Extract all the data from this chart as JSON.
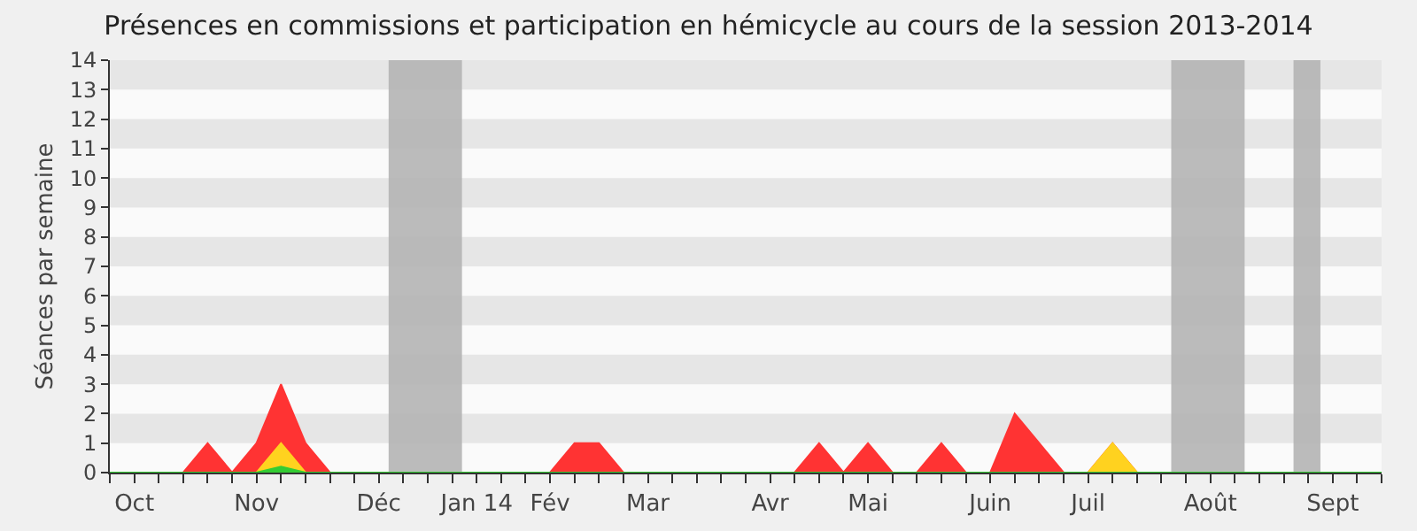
{
  "chart_data": {
    "type": "area",
    "title": "Présences en commissions et participation en hémicycle au cours de la session 2013-2014",
    "ylabel": "Séances par semaine",
    "categories": [
      null,
      "Oct",
      null,
      null,
      null,
      null,
      "Nov",
      null,
      null,
      null,
      null,
      "Déc",
      null,
      null,
      null,
      "Jan 14",
      null,
      null,
      "Fév",
      null,
      null,
      null,
      "Mar",
      null,
      null,
      null,
      null,
      "Avr",
      null,
      null,
      null,
      "Mai",
      null,
      null,
      null,
      null,
      "Juin",
      null,
      null,
      null,
      "Juil",
      null,
      null,
      null,
      null,
      "Août",
      null,
      null,
      null,
      null,
      "Sept",
      null,
      null
    ],
    "series": [
      {
        "color": "#ff3333",
        "values": [
          0,
          0,
          0,
          0,
          1,
          0,
          1,
          3,
          1,
          0,
          0,
          0,
          0,
          0,
          0,
          0,
          0,
          0,
          0,
          1,
          1,
          0,
          0,
          0,
          0,
          0,
          0,
          0,
          0,
          1,
          0,
          1,
          0,
          0,
          1,
          0,
          0,
          2,
          1,
          0,
          0,
          1,
          0,
          0,
          0,
          0,
          0,
          0,
          0,
          0,
          0,
          0,
          0
        ]
      },
      {
        "color": "#ffd21f",
        "values": [
          0,
          0,
          0,
          0,
          0,
          0,
          0,
          1,
          0,
          0,
          0,
          0,
          0,
          0,
          0,
          0,
          0,
          0,
          0,
          0,
          0,
          0,
          0,
          0,
          0,
          0,
          0,
          0,
          0,
          0,
          0,
          0,
          0,
          0,
          0,
          0,
          0,
          0,
          0,
          0,
          0,
          1,
          0,
          0,
          0,
          0,
          0,
          0,
          0,
          0,
          0,
          0,
          0
        ]
      },
      {
        "color": "#33cc33",
        "values": [
          0,
          0,
          0,
          0,
          0,
          0,
          0,
          0.2,
          0,
          0,
          0,
          0,
          0,
          0,
          0,
          0,
          0,
          0,
          0,
          0,
          0,
          0,
          0,
          0,
          0,
          0,
          0,
          0,
          0,
          0,
          0,
          0,
          0,
          0,
          0,
          0,
          0,
          0,
          0,
          0,
          0,
          0,
          0,
          0,
          0,
          0,
          0,
          0,
          0,
          0,
          0,
          0,
          0
        ]
      }
    ],
    "ylim": [
      0,
      14
    ],
    "yticks": [
      0,
      1,
      2,
      3,
      4,
      5,
      6,
      7,
      8,
      9,
      10,
      11,
      12,
      13,
      14
    ]
  }
}
